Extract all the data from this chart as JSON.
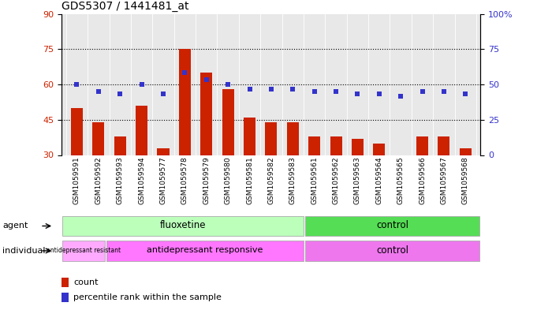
{
  "title": "GDS5307 / 1441481_at",
  "samples": [
    "GSM1059591",
    "GSM1059592",
    "GSM1059593",
    "GSM1059594",
    "GSM1059577",
    "GSM1059578",
    "GSM1059579",
    "GSM1059580",
    "GSM1059581",
    "GSM1059582",
    "GSM1059583",
    "GSM1059561",
    "GSM1059562",
    "GSM1059563",
    "GSM1059564",
    "GSM1059565",
    "GSM1059566",
    "GSM1059567",
    "GSM1059568"
  ],
  "bar_values": [
    50,
    44,
    38,
    51,
    33,
    75,
    65,
    58,
    46,
    44,
    44,
    38,
    38,
    37,
    35,
    30,
    38,
    38,
    33
  ],
  "dot_values": [
    60,
    57,
    56,
    60,
    56,
    65,
    62,
    60,
    58,
    58,
    58,
    57,
    57,
    56,
    56,
    55,
    57,
    57,
    56
  ],
  "bar_color": "#cc2200",
  "dot_color": "#3333cc",
  "ylim_left": [
    30,
    90
  ],
  "ylim_right": [
    0,
    100
  ],
  "yticks_left": [
    30,
    45,
    60,
    75,
    90
  ],
  "ytick_labels_left": [
    "30",
    "45",
    "60",
    "75",
    "90"
  ],
  "yticks_right": [
    0,
    25,
    50,
    75,
    100
  ],
  "ytick_labels_right": [
    "0",
    "25",
    "50",
    "75",
    "100%"
  ],
  "hlines": [
    45,
    60,
    75
  ],
  "n_fluoxetine": 11,
  "n_resistant": 2,
  "n_responsive": 9,
  "color_fluoxetine": "#bbffbb",
  "color_control_agent": "#55dd55",
  "color_resistant": "#ffaaff",
  "color_responsive": "#ff77ff",
  "color_control_individual": "#ee77ee",
  "plot_bg": "#e8e8e8",
  "label_agent": "agent",
  "label_individual": "individual",
  "fluoxetine_label": "fluoxetine",
  "control_agent_label": "control",
  "resistant_label": "antidepressant resistant",
  "responsive_label": "antidepressant responsive",
  "control_ind_label": "control",
  "legend_count_label": "count",
  "legend_pct_label": "percentile rank within the sample"
}
